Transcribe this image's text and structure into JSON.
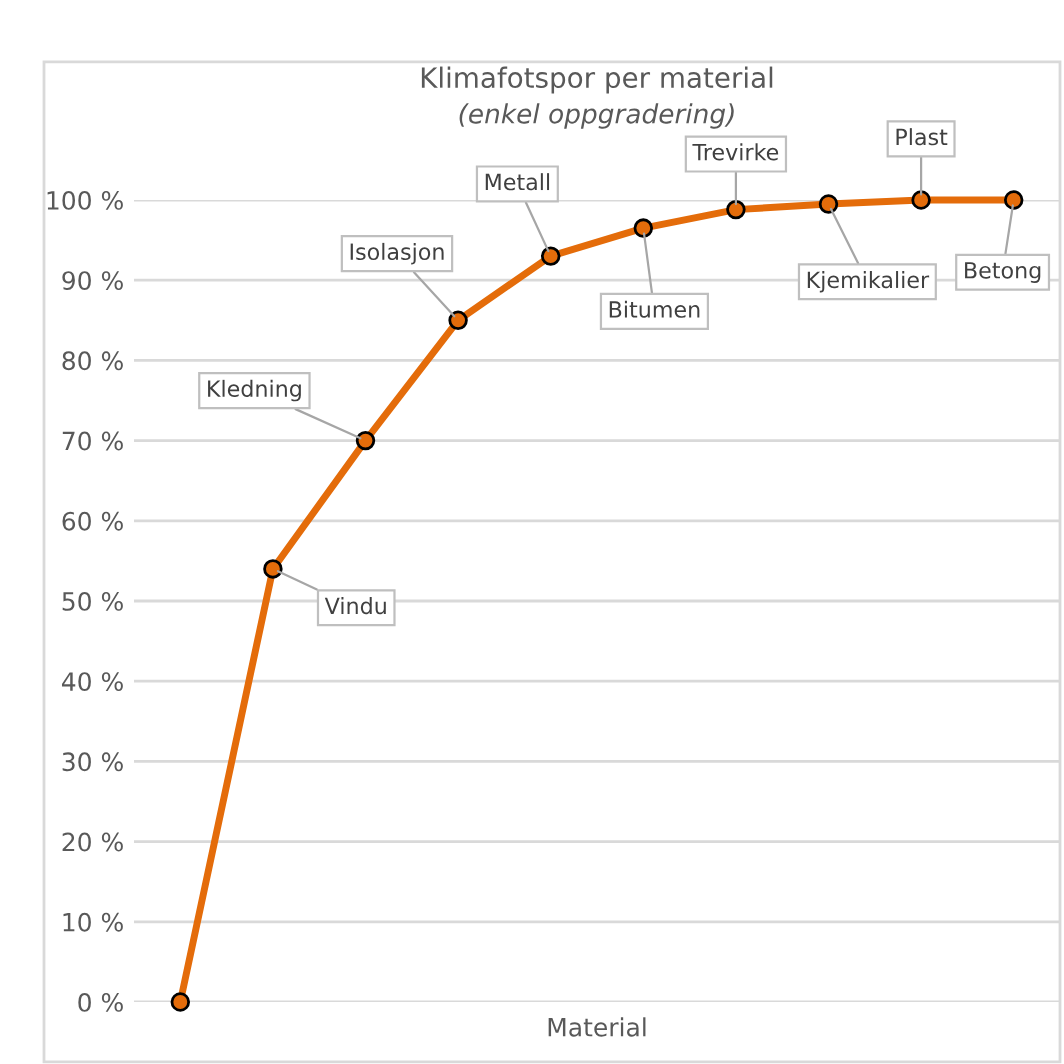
{
  "chart_data": {
    "type": "line",
    "title": "Klimafotspor per material",
    "subtitle": "(enkel oppgradering)",
    "xlabel": "Material",
    "categories": [
      null,
      null,
      null,
      null,
      null,
      null,
      null,
      null,
      null,
      null
    ],
    "series": [
      {
        "color": "#e46c0a",
        "values": [
          0,
          54,
          70,
          85,
          93,
          96.5,
          98.8,
          99.5,
          100,
          100
        ],
        "value_labels": [
          null,
          "Vindu",
          "Kledning",
          "Isolasjon",
          "Metall",
          "Bitumen",
          "Trevirke",
          "Kjemikalier",
          "Plast",
          "Betong"
        ]
      }
    ],
    "ylim": [
      0,
      100
    ],
    "yticks": [
      {
        "value": 0,
        "label": "0 %"
      },
      {
        "value": 10,
        "label": "10 %"
      },
      {
        "value": 20,
        "label": "20 %"
      },
      {
        "value": 30,
        "label": "30 %"
      },
      {
        "value": 40,
        "label": "40 %"
      },
      {
        "value": 50,
        "label": "50 %"
      },
      {
        "value": 60,
        "label": "60 %"
      },
      {
        "value": 70,
        "label": "70 %"
      },
      {
        "value": 80,
        "label": "80 %"
      },
      {
        "value": 90,
        "label": "90 %"
      },
      {
        "value": 100,
        "label": "100 %"
      }
    ],
    "grid": "y",
    "marker": "circle",
    "line_style": "solid",
    "legend": false
  }
}
